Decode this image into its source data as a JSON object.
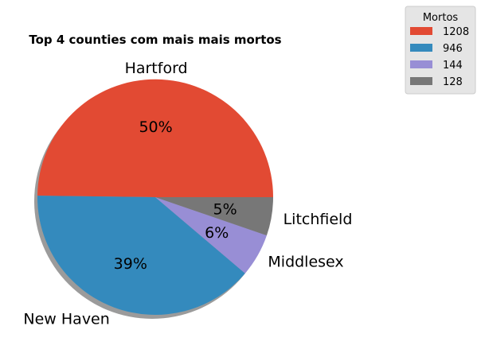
{
  "chart_data": {
    "type": "pie",
    "title": "Top 4 counties com mais mais mortos",
    "categories": [
      "Hartford",
      "New Haven",
      "Middlesex",
      "Litchfield"
    ],
    "values": [
      1208,
      946,
      144,
      128
    ],
    "percent_labels": [
      "50%",
      "39%",
      "6%",
      "5%"
    ],
    "colors": [
      "#e24a33",
      "#348abd",
      "#988ed5",
      "#777777"
    ],
    "start_angle": 0,
    "direction": "counterclockwise",
    "shadow": true,
    "legend": {
      "title": "Mortos",
      "placement": "top-right-outside",
      "entries": [
        "1208",
        "946",
        "144",
        "128"
      ]
    }
  }
}
